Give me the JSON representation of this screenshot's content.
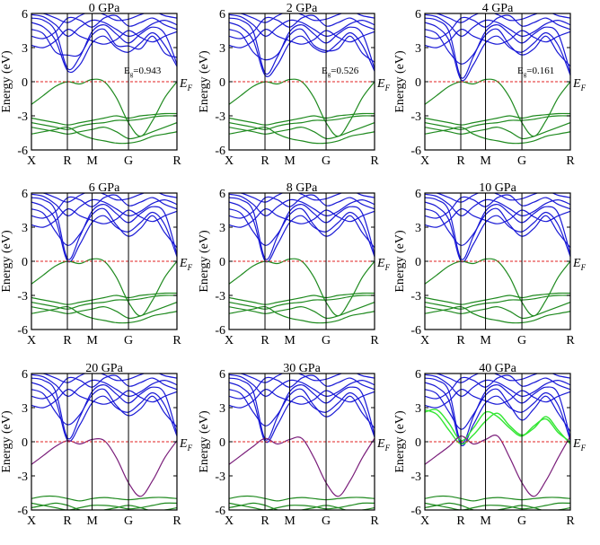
{
  "figure": {
    "ylabel": "Energy (eV)",
    "kpoints": [
      "X",
      "R",
      "M",
      "G",
      "R"
    ],
    "fermi_label": "E",
    "fermi_sub": "F",
    "gap_prefix": "E",
    "gap_sub": "g"
  },
  "colors": {
    "conduction": "#1a1ad6",
    "valence": "#1f8a1f",
    "purple": "#7a1e7a",
    "lime": "#33e633",
    "fermi": "#e02020",
    "axis": "#000000"
  },
  "chart_data": [
    {
      "type": "line",
      "title": "0 GPa",
      "gap": "=0.943",
      "ylim": [
        -6,
        6
      ],
      "yticks": [
        "6",
        "3",
        "0",
        "-3",
        "-6"
      ],
      "xticks": [
        "X",
        "R",
        "M",
        "G",
        "R"
      ],
      "vbm": 0,
      "cbm": 0.943,
      "style": "normal"
    },
    {
      "type": "line",
      "title": "2 GPa",
      "gap": "=0.526",
      "ylim": [
        -6,
        6
      ],
      "yticks": [
        "6",
        "3",
        "0",
        "-3",
        "-6"
      ],
      "xticks": [
        "X",
        "R",
        "M",
        "G",
        "R"
      ],
      "vbm": 0,
      "cbm": 0.526,
      "style": "normal"
    },
    {
      "type": "line",
      "title": "4 GPa",
      "gap": "=0.161",
      "ylim": [
        -6,
        6
      ],
      "yticks": [
        "6",
        "3",
        "0",
        "-3",
        "-6"
      ],
      "xticks": [
        "X",
        "R",
        "M",
        "G",
        "R"
      ],
      "vbm": 0,
      "cbm": 0.161,
      "style": "normal"
    },
    {
      "type": "line",
      "title": "6 GPa",
      "gap": null,
      "ylim": [
        -6,
        6
      ],
      "yticks": [
        "6",
        "3",
        "0",
        "-3",
        "-6"
      ],
      "xticks": [
        "X",
        "R",
        "M",
        "G",
        "R"
      ],
      "vbm": 0,
      "cbm": 0.0,
      "style": "normal"
    },
    {
      "type": "line",
      "title": "8 GPa",
      "gap": null,
      "ylim": [
        -6,
        6
      ],
      "yticks": [
        "6",
        "3",
        "0",
        "-3",
        "-6"
      ],
      "xticks": [
        "X",
        "R",
        "M",
        "G",
        "R"
      ],
      "vbm": 0,
      "cbm": 0.0,
      "style": "normal"
    },
    {
      "type": "line",
      "title": "10 GPa",
      "gap": null,
      "ylim": [
        -6,
        6
      ],
      "yticks": [
        "6",
        "3",
        "0",
        "-3",
        "-6"
      ],
      "xticks": [
        "X",
        "R",
        "M",
        "G",
        "R"
      ],
      "vbm": 0,
      "cbm": 0.0,
      "style": "normal"
    },
    {
      "type": "line",
      "title": "20 GPa",
      "gap": null,
      "ylim": [
        -6,
        6
      ],
      "yticks": [
        "6",
        "3",
        "0",
        "-3",
        "-6"
      ],
      "xticks": [
        "X",
        "R",
        "M",
        "G",
        "R"
      ],
      "vbm": 0.1,
      "cbm": 0.1,
      "style": "purple"
    },
    {
      "type": "line",
      "title": "30 GPa",
      "gap": null,
      "ylim": [
        -6,
        6
      ],
      "yticks": [
        "6",
        "3",
        "0",
        "-3",
        "-6"
      ],
      "xticks": [
        "X",
        "R",
        "M",
        "G",
        "R"
      ],
      "vbm": 0.3,
      "cbm": 0.0,
      "style": "purple"
    },
    {
      "type": "line",
      "title": "40 GPa",
      "gap": null,
      "ylim": [
        -6,
        6
      ],
      "yticks": [
        "6",
        "3",
        "0",
        "-3",
        "-6"
      ],
      "xticks": [
        "X",
        "R",
        "M",
        "G",
        "R"
      ],
      "vbm": 0.5,
      "cbm": -0.3,
      "style": "lime"
    }
  ]
}
